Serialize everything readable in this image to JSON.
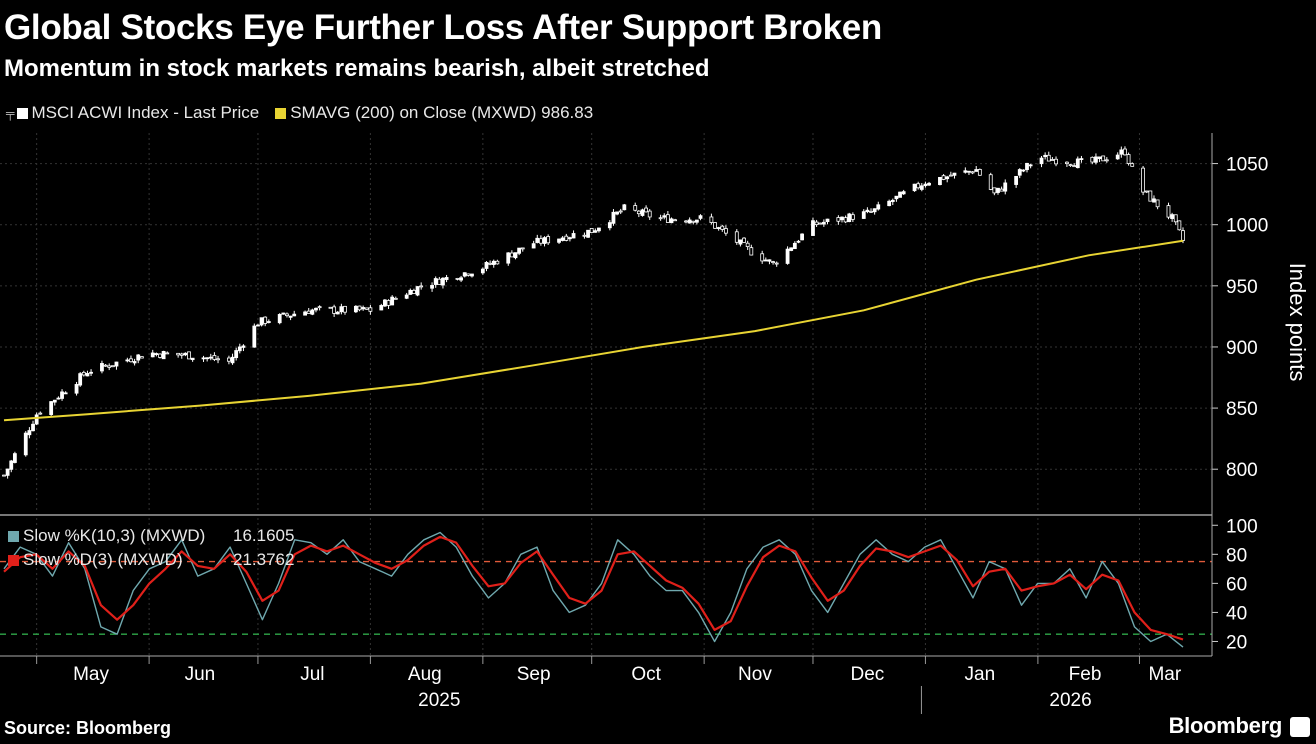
{
  "header": {
    "title": "Global Stocks Eye Further Loss After Support Broken",
    "subtitle": "Momentum in stock markets remains bearish, albeit stretched"
  },
  "legend": {
    "index_label": "MSCI ACWI Index - Last Price",
    "sma_label": "SMAVG (200)  on Close (MXWD) 986.83"
  },
  "lower_legend": {
    "k_label": "Slow %K(10,3) (MXWD)",
    "k_value": "16.1605",
    "d_label": "Slow %D(3) (MXWD)",
    "d_value": "21.3762"
  },
  "footer": {
    "source": "Source: Bloomberg",
    "brand": "Bloomberg"
  },
  "colors": {
    "background": "#000000",
    "candles": "#ffffff",
    "sma": "#e8d433",
    "slow_k": "#6fa8ae",
    "slow_d": "#e0201a",
    "overbought_line": "#e05a3a",
    "oversold_line": "#2fa84a",
    "grid": "#333333"
  },
  "chart_data": [
    {
      "type": "candlestick",
      "ylabel": "Index points",
      "ylim": [
        765,
        1075
      ],
      "yticks": [
        800,
        850,
        900,
        950,
        1000,
        1050
      ],
      "x_months": [
        "May",
        "Jun",
        "Jul",
        "Aug",
        "Sep",
        "Oct",
        "Nov",
        "Dec",
        "Jan",
        "Feb",
        "Mar"
      ],
      "x_years": [
        "2025",
        "2026"
      ],
      "grid": true,
      "series": [
        {
          "name": "MSCI ACWI Index - Last Price",
          "x": [
            "2025-04-22",
            "2025-05-01",
            "2025-05-15",
            "2025-06-01",
            "2025-06-13",
            "2025-06-23",
            "2025-07-01",
            "2025-07-15",
            "2025-08-01",
            "2025-08-15",
            "2025-09-01",
            "2025-09-15",
            "2025-10-01",
            "2025-10-10",
            "2025-10-20",
            "2025-11-01",
            "2025-11-14",
            "2025-11-20",
            "2025-12-01",
            "2025-12-17",
            "2026-01-01",
            "2026-01-15",
            "2026-01-20",
            "2026-02-01",
            "2026-02-15",
            "2026-02-25",
            "2026-03-01",
            "2026-03-10",
            "2026-03-13"
          ],
          "values": [
            795,
            845,
            880,
            895,
            893,
            888,
            920,
            930,
            930,
            950,
            965,
            985,
            995,
            1013,
            1005,
            1005,
            978,
            968,
            1000,
            1010,
            1035,
            1045,
            1025,
            1055,
            1050,
            1060,
            1030,
            1005,
            987
          ]
        },
        {
          "name": "SMAVG (200)  on Close (MXWD)",
          "x": [
            "2025-04-22",
            "2025-05-15",
            "2025-06-15",
            "2025-07-15",
            "2025-08-15",
            "2025-09-15",
            "2025-10-15",
            "2025-11-15",
            "2025-12-15",
            "2026-01-15",
            "2026-02-15",
            "2026-03-13"
          ],
          "values": [
            840,
            845,
            852,
            860,
            870,
            885,
            900,
            913,
            930,
            955,
            975,
            986.83
          ]
        }
      ]
    },
    {
      "type": "line",
      "ylim": [
        10,
        105
      ],
      "yticks": [
        20,
        40,
        60,
        80,
        100
      ],
      "reference_lines": [
        75,
        25
      ],
      "series": [
        {
          "name": "Slow %K(10,3) (MXWD)",
          "values": [
            70,
            85,
            80,
            65,
            88,
            70,
            30,
            25,
            55,
            70,
            75,
            90,
            65,
            70,
            85,
            60,
            35,
            60,
            90,
            88,
            80,
            90,
            75,
            70,
            65,
            80,
            90,
            95,
            85,
            65,
            50,
            60,
            80,
            85,
            55,
            40,
            45,
            60,
            90,
            80,
            65,
            55,
            55,
            40,
            20,
            40,
            70,
            85,
            90,
            80,
            55,
            40,
            60,
            80,
            90,
            80,
            75,
            85,
            90,
            70,
            50,
            75,
            70,
            45,
            60,
            60,
            70,
            50,
            75,
            60,
            30,
            20,
            25,
            16.16
          ]
        },
        {
          "name": "Slow %D(3) (MXWD)",
          "values": [
            68,
            78,
            80,
            70,
            82,
            72,
            45,
            35,
            45,
            60,
            70,
            82,
            72,
            70,
            80,
            68,
            48,
            55,
            80,
            86,
            82,
            86,
            80,
            74,
            70,
            76,
            86,
            92,
            88,
            72,
            58,
            60,
            74,
            82,
            66,
            50,
            46,
            55,
            80,
            82,
            72,
            62,
            57,
            46,
            28,
            34,
            58,
            78,
            86,
            82,
            64,
            48,
            55,
            72,
            84,
            82,
            78,
            82,
            86,
            76,
            58,
            68,
            70,
            55,
            58,
            60,
            66,
            56,
            66,
            62,
            40,
            28,
            25,
            21.38
          ]
        }
      ]
    }
  ]
}
